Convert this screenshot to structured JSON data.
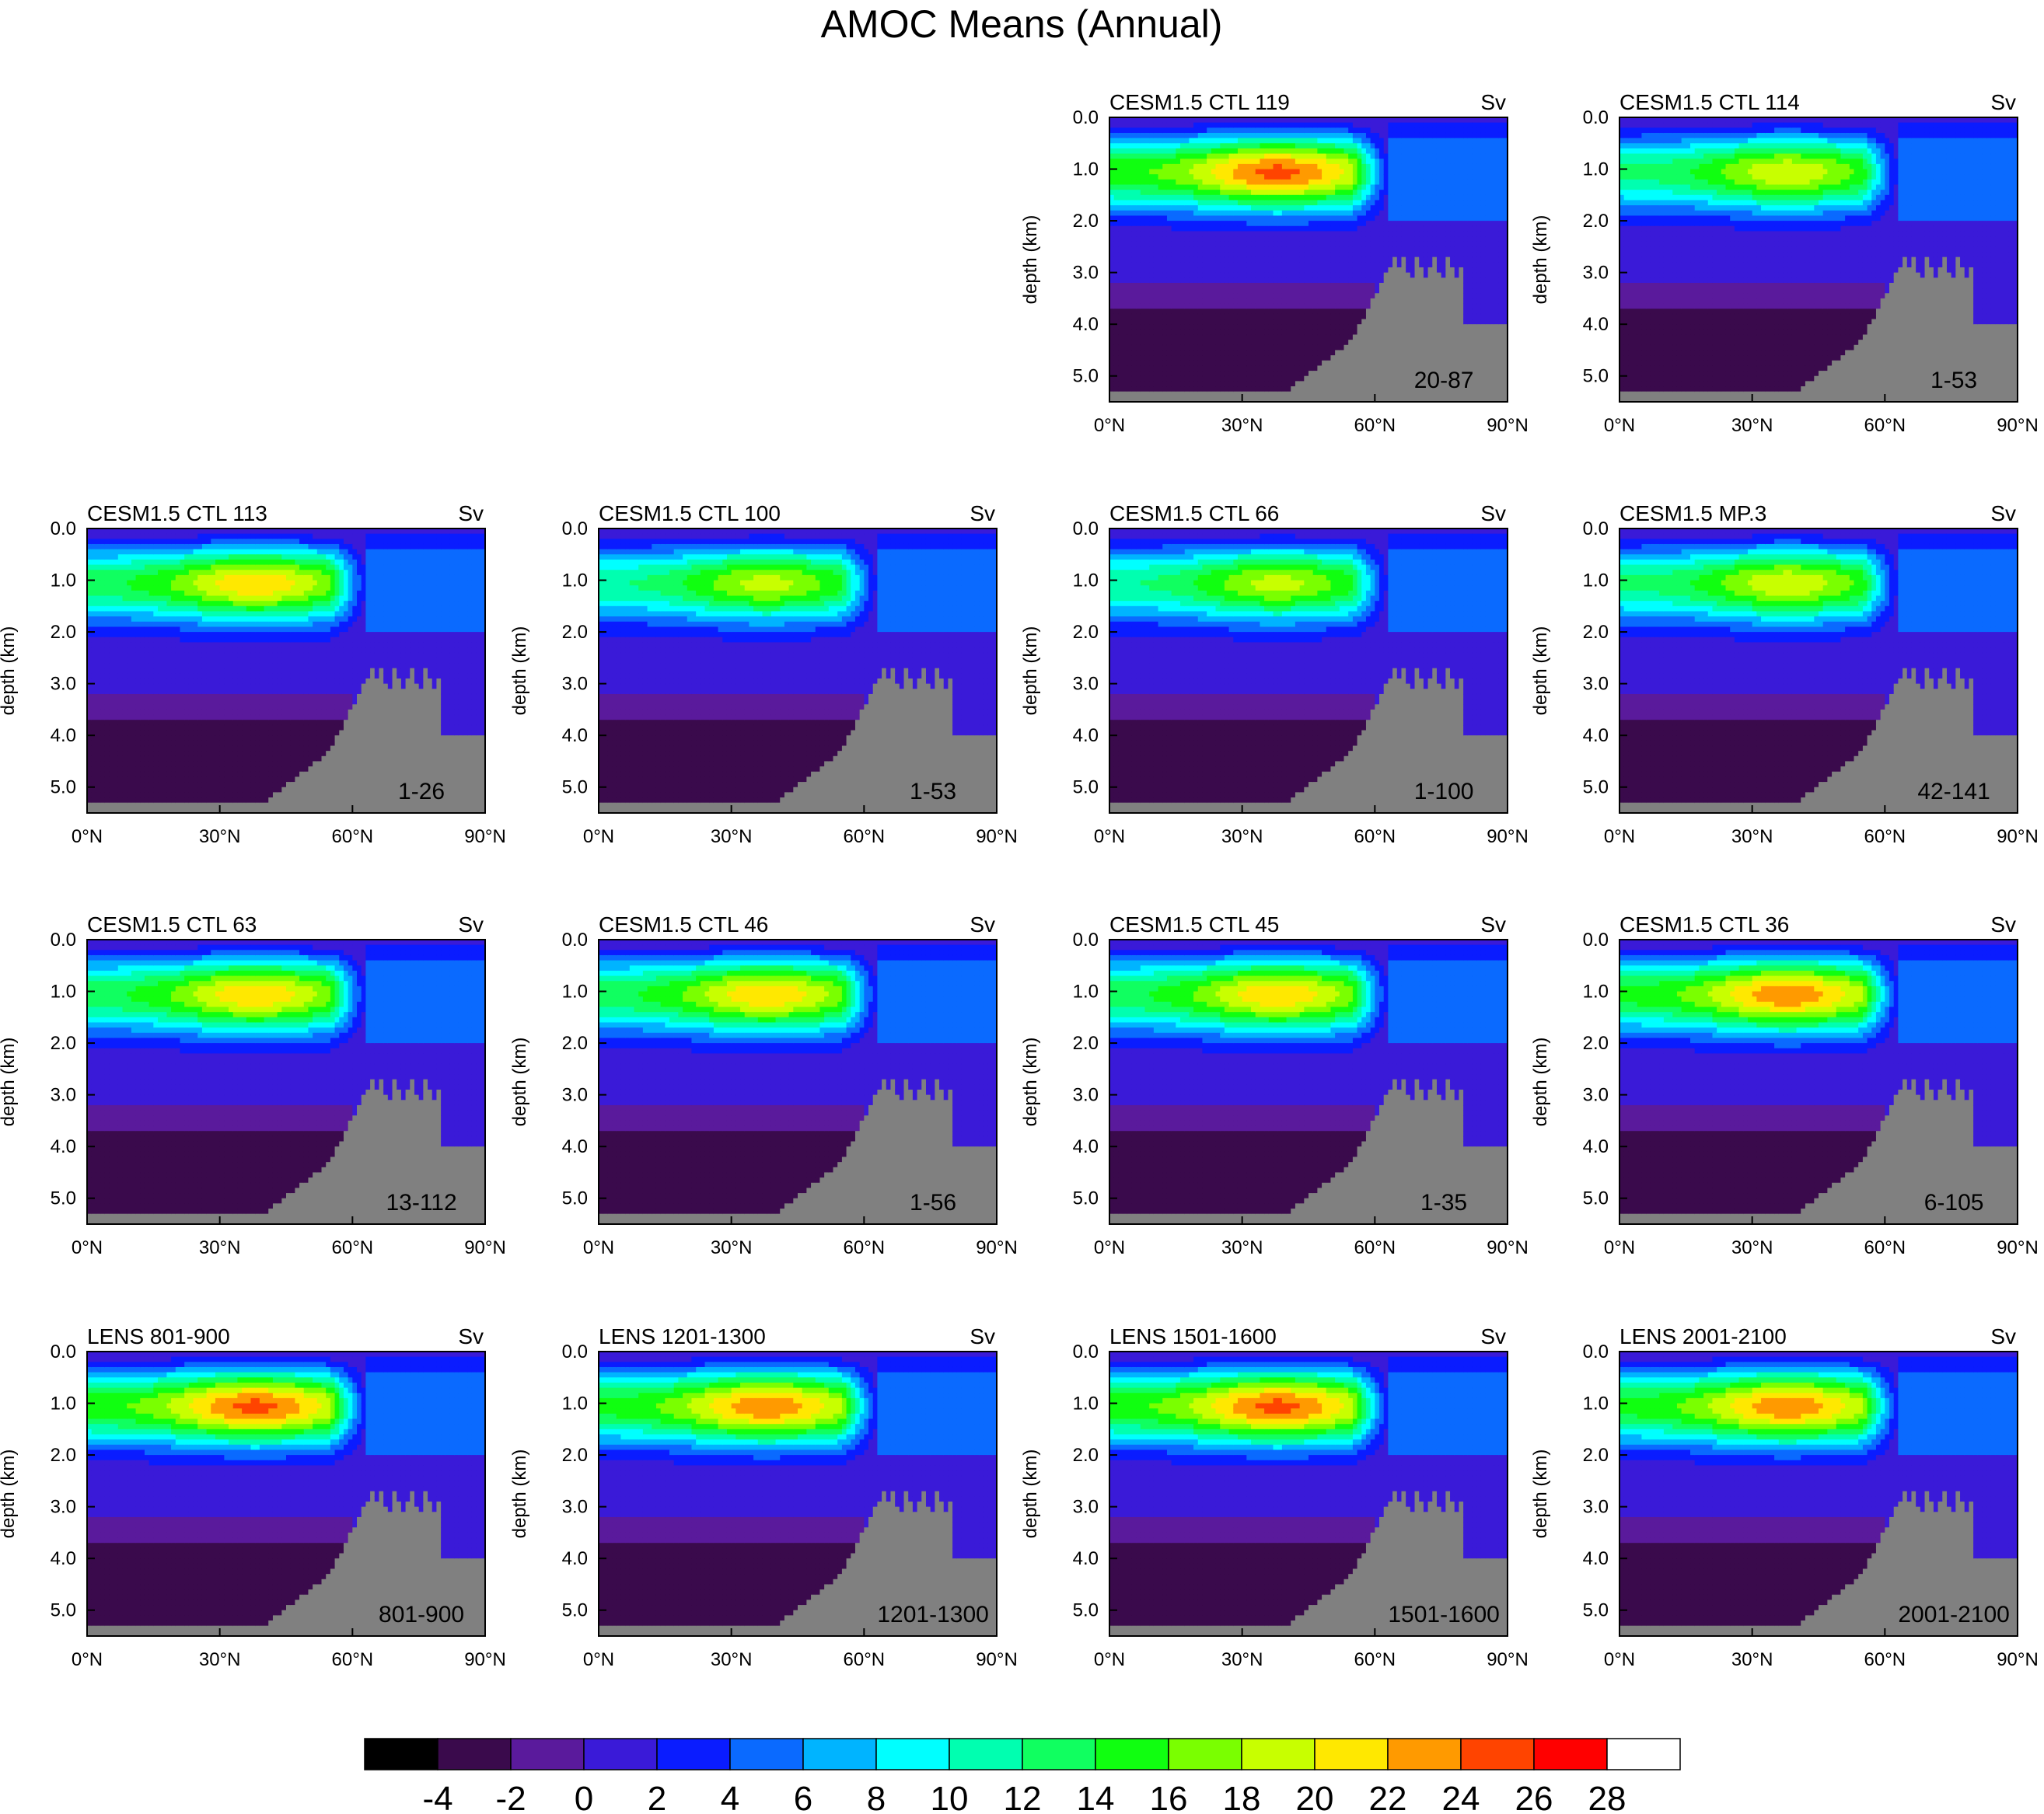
{
  "figure": {
    "title": "AMOC Means (Annual)"
  },
  "chart_data": {
    "type": "contour",
    "variable": "AMOC",
    "units": "Sv",
    "x_ticks": [
      "0°N",
      "30°N",
      "60°N",
      "90°N"
    ],
    "x_range": [
      0,
      90
    ],
    "y_label": "depth (km)",
    "y_ticks": [
      "0.0",
      "1.0",
      "2.0",
      "3.0",
      "4.0",
      "5.0"
    ],
    "y_range": [
      0,
      5.5
    ],
    "colorbar": {
      "levels": [
        -4,
        -2,
        0,
        2,
        4,
        6,
        8,
        10,
        12,
        14,
        16,
        18,
        20,
        22,
        24,
        26,
        28
      ],
      "tick_labels": [
        "-4",
        "-2",
        "0",
        "2",
        "4",
        "6",
        "8",
        "10",
        "12",
        "14",
        "16",
        "18",
        "20",
        "22",
        "24",
        "26",
        "28"
      ],
      "colors": [
        "#000000",
        "#3a0a4c",
        "#5a1a9c",
        "#3a1ad8",
        "#0a1cff",
        "#0a6aff",
        "#00b4ff",
        "#00ffff",
        "#00ffb0",
        "#10ff60",
        "#10ff10",
        "#7aff00",
        "#c8ff00",
        "#ffe800",
        "#ff9a00",
        "#ff4400",
        "#ff0000",
        "#ffffff"
      ]
    },
    "panels": [
      {
        "title": "CESM1.5 CTL 119",
        "units": "Sv",
        "years": "20-87",
        "max": 26
      },
      {
        "title": "CESM1.5 CTL 114",
        "units": "Sv",
        "years": "1-53",
        "max": 21
      },
      {
        "title": "CESM1.5 CTL 113",
        "units": "Sv",
        "years": "1-26",
        "max": 23
      },
      {
        "title": "CESM1.5 CTL 100",
        "units": "Sv",
        "years": "1-53",
        "max": 20
      },
      {
        "title": "CESM1.5 CTL 66",
        "units": "Sv",
        "years": "1-100",
        "max": 20
      },
      {
        "title": "CESM1.5 MP.3",
        "units": "Sv",
        "years": "42-141",
        "max": 21
      },
      {
        "title": "CESM1.5 CTL 63",
        "units": "Sv",
        "years": "13-112",
        "max": 23
      },
      {
        "title": "CESM1.5 CTL 46",
        "units": "Sv",
        "years": "1-56",
        "max": 23
      },
      {
        "title": "CESM1.5 CTL 45",
        "units": "Sv",
        "years": "1-35",
        "max": 23
      },
      {
        "title": "CESM1.5 CTL 36",
        "units": "Sv",
        "years": "6-105",
        "max": 25
      },
      {
        "title": "LENS 801-900",
        "units": "Sv",
        "years": "801-900",
        "max": 26
      },
      {
        "title": "LENS 1201-1300",
        "units": "Sv",
        "years": "1201-1300",
        "max": 25
      },
      {
        "title": "LENS 1501-1600",
        "units": "Sv",
        "years": "1501-1600",
        "max": 26
      },
      {
        "title": "LENS 2001-2100",
        "units": "Sv",
        "years": "2001-2100",
        "max": 25
      }
    ]
  }
}
